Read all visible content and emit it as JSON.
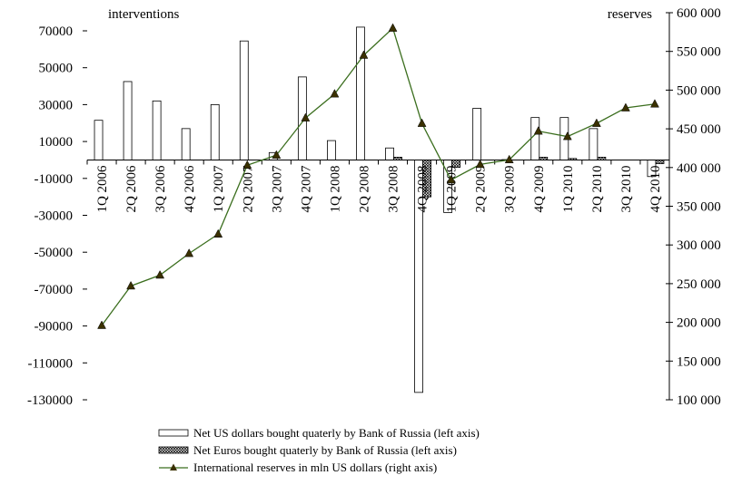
{
  "chart_data": {
    "type": "bar",
    "left_axis_title": "interventions",
    "right_axis_title": "reserves",
    "categories": [
      "1Q 2006",
      "2Q 2006",
      "3Q 2006",
      "4Q 2006",
      "1Q 2007",
      "2Q 2007",
      "3Q 2007",
      "4Q 2007",
      "1Q 2008",
      "2Q 2008",
      "3Q 2008",
      "4Q 2008",
      "1Q 2009",
      "2Q 2009",
      "3Q 2009",
      "4Q 2009",
      "1Q 2010",
      "2Q 2010",
      "3Q 2010",
      "4Q 2010"
    ],
    "left_ylim": [
      -130000,
      80000
    ],
    "left_ticks": [
      70000,
      50000,
      30000,
      10000,
      -10000,
      -30000,
      -50000,
      -70000,
      -90000,
      -110000,
      -130000
    ],
    "left_tick_labels": [
      "70000",
      "50000",
      "30000",
      "10000",
      "-10000",
      "-30000",
      "-50000",
      "-70000",
      "-90000",
      "-110000",
      "-130000"
    ],
    "right_ylim": [
      100000,
      600000
    ],
    "right_ticks": [
      600000,
      550000,
      500000,
      450000,
      400000,
      350000,
      300000,
      250000,
      200000,
      150000,
      100000
    ],
    "right_tick_labels": [
      "600 000",
      "550 000",
      "500 000",
      "450 000",
      "400 000",
      "350 000",
      "300 000",
      "250 000",
      "200 000",
      "150 000",
      "100 000"
    ],
    "series": [
      {
        "name": "Net US dollars bought quaterly by Bank of Russia (left axis)",
        "kind": "bar",
        "axis": "left",
        "fill": "#ffffff",
        "values": [
          21500,
          42500,
          32000,
          17000,
          30000,
          64500,
          4000,
          45000,
          10500,
          72000,
          6500,
          -126000,
          -28500,
          28000,
          200,
          23000,
          23000,
          17000,
          0,
          -9000
        ]
      },
      {
        "name": "Net Euros bought quaterly by Bank of Russia (left axis)",
        "kind": "bar",
        "axis": "left",
        "fill": "crosshatch",
        "values": [
          0,
          0,
          0,
          0,
          0,
          0,
          0,
          0,
          0,
          0,
          1500,
          -20000,
          -4000,
          0,
          0,
          1500,
          800,
          1500,
          0,
          -2000
        ]
      },
      {
        "name": "International reserves in mln US dollars (right axis)",
        "kind": "line",
        "axis": "right",
        "color": "#3b6e1e",
        "marker": "triangle",
        "values": [
          196000,
          247000,
          261000,
          289000,
          314000,
          403000,
          416000,
          464000,
          495000,
          545000,
          580000,
          457000,
          384000,
          404000,
          410000,
          447000,
          440000,
          457000,
          477000,
          482000
        ]
      }
    ],
    "legend_position": "bottom-center"
  }
}
